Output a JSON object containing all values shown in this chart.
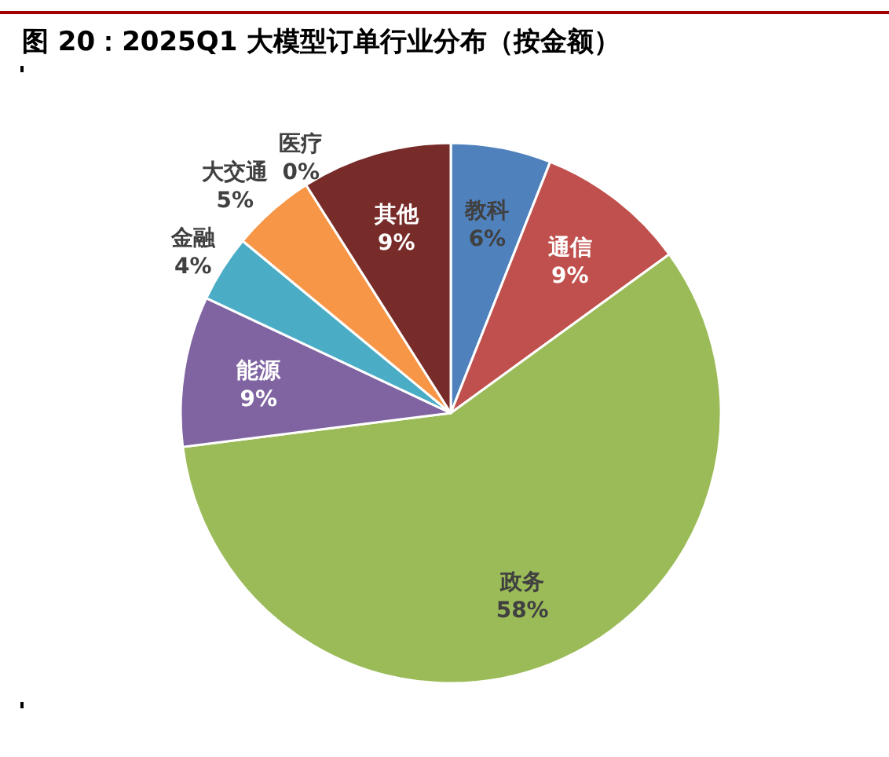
{
  "chart_data": {
    "type": "pie",
    "title": "图 20：2025Q1 大模型订单行业分布（按金额）",
    "categories": [
      "教科",
      "通信",
      "政务",
      "能源",
      "金融",
      "大交通",
      "医疗",
      "其他"
    ],
    "values": [
      6,
      9,
      58,
      9,
      4,
      5,
      0,
      9
    ],
    "value_labels": [
      "6%",
      "9%",
      "58%",
      "9%",
      "4%",
      "5%",
      "0%",
      "9%"
    ],
    "colors": [
      "#4f81bd",
      "#c0504d",
      "#9bbb59",
      "#8064a2",
      "#4bacc6",
      "#f79646",
      "#1f497d",
      "#772c2a"
    ],
    "legend": false
  }
}
